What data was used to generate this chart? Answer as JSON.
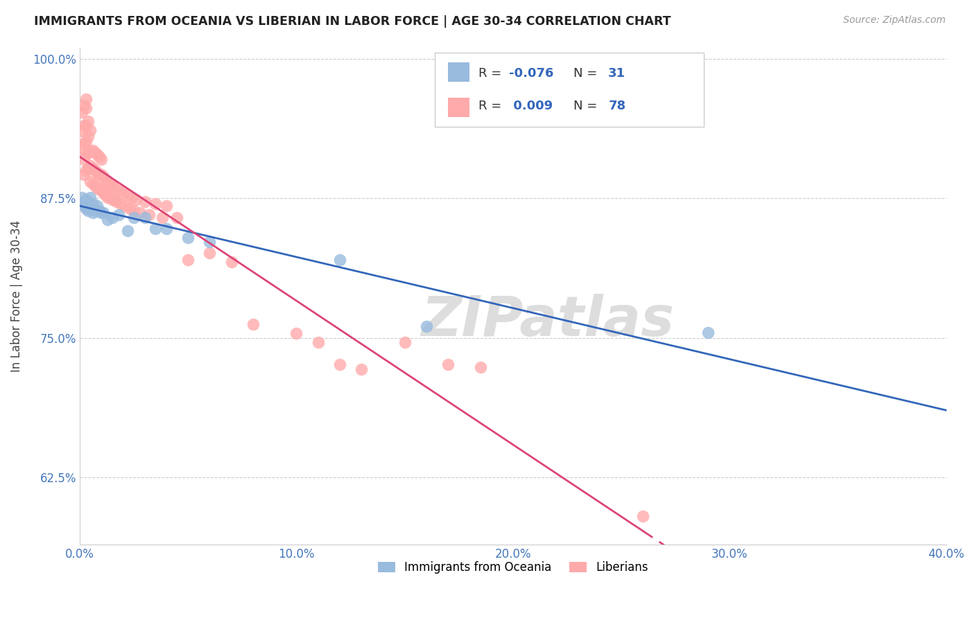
{
  "title": "IMMIGRANTS FROM OCEANIA VS LIBERIAN IN LABOR FORCE | AGE 30-34 CORRELATION CHART",
  "source": "Source: ZipAtlas.com",
  "ylabel": "In Labor Force | Age 30-34",
  "legend_labels": [
    "Immigrants from Oceania",
    "Liberians"
  ],
  "legend_r_blue": "R = -0.076",
  "legend_r_pink": "R =  0.009",
  "legend_n_blue": "N = 31",
  "legend_n_pink": "N = 78",
  "blue_color": "#99BBDD",
  "pink_color": "#FFAAAA",
  "blue_line_color": "#3366BB",
  "pink_line_color": "#DD4477",
  "xlim": [
    0.0,
    0.4
  ],
  "ylim": [
    0.565,
    1.01
  ],
  "yticks": [
    0.625,
    0.75,
    0.875,
    1.0
  ],
  "ytick_labels": [
    "62.5%",
    "75.0%",
    "87.5%",
    "100.0%"
  ],
  "xticks": [
    0.0,
    0.1,
    0.2,
    0.3,
    0.4
  ],
  "xtick_labels": [
    "0.0%",
    "10.0%",
    "20.0%",
    "30.0%",
    "40.0%"
  ],
  "blue_x": [
    0.001,
    0.002,
    0.002,
    0.003,
    0.003,
    0.003,
    0.004,
    0.004,
    0.004,
    0.005,
    0.005,
    0.006,
    0.006,
    0.007,
    0.008,
    0.009,
    0.01,
    0.011,
    0.013,
    0.015,
    0.018,
    0.022,
    0.025,
    0.03,
    0.035,
    0.04,
    0.05,
    0.06,
    0.12,
    0.16,
    0.29
  ],
  "blue_y": [
    0.876,
    0.872,
    0.868,
    0.874,
    0.87,
    0.866,
    0.872,
    0.868,
    0.864,
    0.876,
    0.868,
    0.87,
    0.862,
    0.864,
    0.868,
    0.864,
    0.862,
    0.862,
    0.856,
    0.858,
    0.86,
    0.846,
    0.858,
    0.858,
    0.848,
    0.848,
    0.84,
    0.836,
    0.82,
    0.76,
    0.755
  ],
  "pink_x": [
    0.001,
    0.001,
    0.001,
    0.002,
    0.002,
    0.002,
    0.002,
    0.002,
    0.003,
    0.003,
    0.003,
    0.003,
    0.003,
    0.003,
    0.004,
    0.004,
    0.004,
    0.004,
    0.005,
    0.005,
    0.005,
    0.005,
    0.006,
    0.006,
    0.006,
    0.007,
    0.007,
    0.007,
    0.008,
    0.008,
    0.008,
    0.009,
    0.009,
    0.009,
    0.01,
    0.01,
    0.01,
    0.011,
    0.011,
    0.012,
    0.012,
    0.013,
    0.013,
    0.014,
    0.014,
    0.015,
    0.015,
    0.016,
    0.016,
    0.017,
    0.018,
    0.019,
    0.02,
    0.021,
    0.022,
    0.023,
    0.024,
    0.025,
    0.026,
    0.028,
    0.03,
    0.032,
    0.035,
    0.038,
    0.04,
    0.045,
    0.05,
    0.06,
    0.07,
    0.08,
    0.1,
    0.11,
    0.12,
    0.13,
    0.15,
    0.17,
    0.185,
    0.26
  ],
  "pink_y": [
    0.92,
    0.935,
    0.952,
    0.896,
    0.91,
    0.924,
    0.94,
    0.958,
    0.9,
    0.914,
    0.926,
    0.94,
    0.956,
    0.964,
    0.902,
    0.916,
    0.93,
    0.944,
    0.89,
    0.904,
    0.918,
    0.936,
    0.888,
    0.902,
    0.918,
    0.886,
    0.9,
    0.916,
    0.884,
    0.898,
    0.914,
    0.884,
    0.896,
    0.912,
    0.882,
    0.896,
    0.91,
    0.88,
    0.894,
    0.878,
    0.892,
    0.876,
    0.89,
    0.876,
    0.888,
    0.874,
    0.886,
    0.874,
    0.884,
    0.872,
    0.882,
    0.87,
    0.88,
    0.868,
    0.878,
    0.866,
    0.876,
    0.864,
    0.874,
    0.862,
    0.872,
    0.86,
    0.87,
    0.858,
    0.868,
    0.858,
    0.82,
    0.826,
    0.818,
    0.762,
    0.754,
    0.746,
    0.726,
    0.722,
    0.746,
    0.726,
    0.724,
    0.59
  ],
  "background_color": "#FFFFFF",
  "grid_color": "#CCCCCC",
  "axis_color": "#4477BB",
  "watermark": "ZIPatlas",
  "watermark_color": "#DDDDDD"
}
